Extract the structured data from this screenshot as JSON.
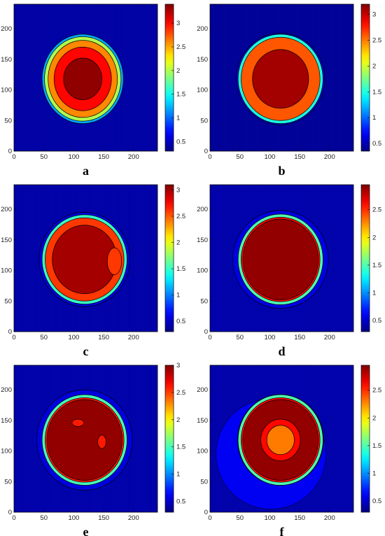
{
  "chart_data": [
    {
      "type": "heatmap",
      "label": "a",
      "xlim": [
        0,
        240
      ],
      "ylim": [
        0,
        240
      ],
      "xticks": [
        0,
        50,
        100,
        150,
        200
      ],
      "yticks": [
        0,
        50,
        100,
        150,
        200
      ],
      "colorbar": {
        "min": 0.3,
        "max": 3.4,
        "ticks": [
          "0.5",
          "1",
          "1.5",
          "2",
          "2.5",
          "3"
        ],
        "tick_values": [
          0.5,
          1,
          1.5,
          2,
          2.5,
          3
        ]
      },
      "center": [
        115,
        118
      ],
      "contours": [
        {
          "value": 1.2,
          "rx": 68,
          "ry": 73
        },
        {
          "value": 2.0,
          "rx": 64,
          "ry": 69
        },
        {
          "value": 2.6,
          "rx": 58,
          "ry": 63
        },
        {
          "value": 3.0,
          "rx": 48,
          "ry": 52
        },
        {
          "value": 3.35,
          "rx": 32,
          "ry": 34
        }
      ],
      "features": []
    },
    {
      "type": "heatmap",
      "label": "b",
      "xlim": [
        0,
        240
      ],
      "ylim": [
        0,
        240
      ],
      "xticks": [
        0,
        50,
        100,
        150,
        200
      ],
      "yticks": [
        0,
        50,
        100,
        150,
        200
      ],
      "colorbar": {
        "min": 0.35,
        "max": 3.2,
        "ticks": [
          "0.5",
          "1",
          "1.5",
          "2",
          "2.5",
          "3"
        ],
        "tick_values": [
          0.5,
          1,
          1.5,
          2,
          2.5,
          3
        ]
      },
      "center": [
        118,
        118
      ],
      "contours": [
        {
          "value": 0.6,
          "rx": 74,
          "ry": 75
        },
        {
          "value": 1.5,
          "rx": 71,
          "ry": 73
        },
        {
          "value": 2.6,
          "rx": 66,
          "ry": 68
        },
        {
          "value": 3.1,
          "rx": 47,
          "ry": 48
        }
      ],
      "features": []
    },
    {
      "type": "heatmap",
      "label": "c",
      "xlim": [
        0,
        240
      ],
      "ylim": [
        0,
        240
      ],
      "xticks": [
        0,
        50,
        100,
        150,
        200
      ],
      "yticks": [
        0,
        50,
        100,
        150,
        200
      ],
      "colorbar": {
        "min": 0.3,
        "max": 3.1,
        "ticks": [
          "0.5",
          "1",
          "1.5",
          "2",
          "2.5",
          "3"
        ],
        "tick_values": [
          0.5,
          1,
          1.5,
          2,
          2.5,
          3
        ]
      },
      "center": [
        118,
        118
      ],
      "contours": [
        {
          "value": 0.55,
          "rx": 76,
          "ry": 77
        },
        {
          "value": 1.5,
          "rx": 71,
          "ry": 73
        },
        {
          "value": 2.6,
          "rx": 66,
          "ry": 68
        },
        {
          "value": 3.0,
          "rx": 54,
          "ry": 56
        }
      ],
      "features": [
        {
          "x": 168,
          "y": 115,
          "rx": 12,
          "ry": 22,
          "value": 2.6
        }
      ]
    },
    {
      "type": "heatmap",
      "label": "d",
      "xlim": [
        0,
        240
      ],
      "ylim": [
        0,
        240
      ],
      "xticks": [
        0,
        50,
        100,
        150,
        200
      ],
      "yticks": [
        0,
        50,
        100,
        150,
        200
      ],
      "colorbar": {
        "min": 0.3,
        "max": 2.95,
        "ticks": [
          "0.5",
          "1",
          "1.5",
          "2",
          "2.5"
        ],
        "tick_values": [
          0.5,
          1,
          1.5,
          2,
          2.5
        ]
      },
      "center": [
        118,
        118
      ],
      "contours": [
        {
          "value": 0.55,
          "rx": 80,
          "ry": 80
        },
        {
          "value": 1.5,
          "rx": 71,
          "ry": 74
        },
        {
          "value": 2.6,
          "rx": 66,
          "ry": 69
        },
        {
          "value": 2.9,
          "rx": 63,
          "ry": 66
        }
      ],
      "features": []
    },
    {
      "type": "heatmap",
      "label": "e",
      "xlim": [
        0,
        240
      ],
      "ylim": [
        0,
        240
      ],
      "xticks": [
        0,
        50,
        100,
        150,
        200
      ],
      "yticks": [
        0,
        50,
        100,
        150,
        200
      ],
      "colorbar": {
        "min": 0.3,
        "max": 3.0,
        "ticks": [
          "0.5",
          "1",
          "1.5",
          "2",
          "2.5",
          "3"
        ],
        "tick_values": [
          0.5,
          1,
          1.5,
          2,
          2.5,
          3
        ]
      },
      "center": [
        118,
        118
      ],
      "contours": [
        {
          "value": 0.55,
          "rx": 80,
          "ry": 82
        },
        {
          "value": 1.5,
          "rx": 71,
          "ry": 74
        },
        {
          "value": 2.6,
          "rx": 66,
          "ry": 69
        },
        {
          "value": 2.95,
          "rx": 63,
          "ry": 66
        }
      ],
      "features": [
        {
          "x": 107,
          "y": 146,
          "rx": 10,
          "ry": 6,
          "value": 2.6
        },
        {
          "x": 147,
          "y": 115,
          "rx": 7,
          "ry": 11,
          "value": 2.6
        }
      ]
    },
    {
      "type": "heatmap",
      "label": "f",
      "xlim": [
        0,
        240
      ],
      "ylim": [
        0,
        240
      ],
      "xticks": [
        0,
        50,
        100,
        150,
        200
      ],
      "yticks": [
        0,
        50,
        100,
        150,
        200
      ],
      "colorbar": {
        "min": 0.3,
        "max": 2.95,
        "ticks": [
          "0.5",
          "1",
          "1.5",
          "2",
          "2.5"
        ],
        "tick_values": [
          0.5,
          1,
          1.5,
          2,
          2.5
        ]
      },
      "center": [
        118,
        118
      ],
      "contours": [
        {
          "value": 0.6,
          "rx": 72,
          "ry": 74
        },
        {
          "value": 1.5,
          "rx": 71,
          "ry": 74
        },
        {
          "value": 2.6,
          "rx": 66,
          "ry": 69
        },
        {
          "value": 2.9,
          "rx": 63,
          "ry": 66
        },
        {
          "value": 2.6,
          "rx": 33,
          "ry": 34
        },
        {
          "value": 2.3,
          "rx": 23,
          "ry": 24
        }
      ],
      "features": [],
      "outer_halo": {
        "x": 102,
        "y": 95,
        "rx": 92,
        "ry": 90,
        "value": 0.6
      }
    }
  ]
}
